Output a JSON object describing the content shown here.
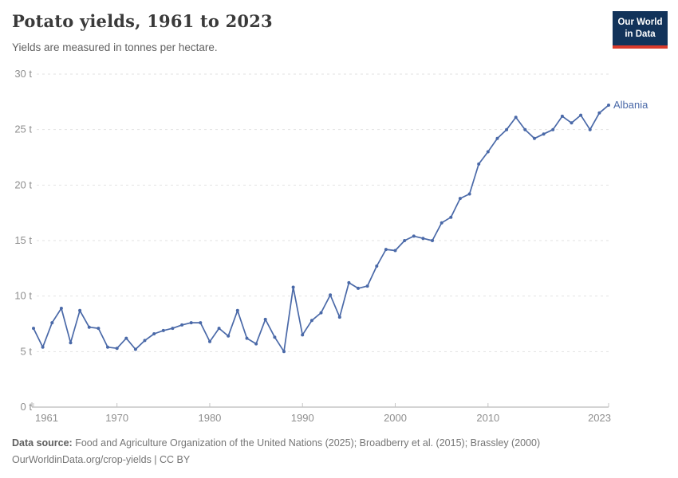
{
  "header": {
    "title": "Potato yields, 1961 to 2023",
    "subtitle": "Yields are measured in tonnes per hectare.",
    "logo": {
      "line1": "Our World",
      "line2": "in Data",
      "bg_color": "#12335a",
      "accent_color": "#d93a2b"
    }
  },
  "chart_data": {
    "type": "line",
    "title": "Potato yields, 1961 to 2023",
    "ylabel": "tonnes per hectare",
    "unit": "t",
    "xlim": [
      1961,
      2023
    ],
    "ylim": [
      0,
      30
    ],
    "x_ticks": [
      1961,
      1970,
      1980,
      1990,
      2000,
      2010,
      2023
    ],
    "y_ticks": [
      0,
      5,
      10,
      15,
      20,
      25,
      30
    ],
    "grid": "horizontal-dashed",
    "legend_position": "end-of-line-label",
    "series": [
      {
        "name": "Albania",
        "color": "#4a69a8",
        "years": [
          1961,
          1962,
          1963,
          1964,
          1965,
          1966,
          1967,
          1968,
          1969,
          1970,
          1971,
          1972,
          1973,
          1974,
          1975,
          1976,
          1977,
          1978,
          1979,
          1980,
          1981,
          1982,
          1983,
          1984,
          1985,
          1986,
          1987,
          1988,
          1989,
          1990,
          1991,
          1992,
          1993,
          1994,
          1995,
          1996,
          1997,
          1998,
          1999,
          2000,
          2001,
          2002,
          2003,
          2004,
          2005,
          2006,
          2007,
          2008,
          2009,
          2010,
          2011,
          2012,
          2013,
          2014,
          2015,
          2016,
          2017,
          2018,
          2019,
          2020,
          2021,
          2022,
          2023
        ],
        "values": [
          7.1,
          5.4,
          7.6,
          8.9,
          5.8,
          8.7,
          7.2,
          7.1,
          5.4,
          5.3,
          6.2,
          5.2,
          6.0,
          6.6,
          6.9,
          7.1,
          7.4,
          7.6,
          7.6,
          5.9,
          7.1,
          6.4,
          8.7,
          6.2,
          5.7,
          7.9,
          6.3,
          5.0,
          10.8,
          6.5,
          7.8,
          8.5,
          10.1,
          8.1,
          11.2,
          10.7,
          10.9,
          12.7,
          14.2,
          14.1,
          15.0,
          15.4,
          15.2,
          15.0,
          16.6,
          17.1,
          18.8,
          19.2,
          21.9,
          23.0,
          24.2,
          25.0,
          26.1,
          25.0,
          24.2,
          24.6,
          25.0,
          26.2,
          25.6,
          26.3,
          25.0,
          26.5,
          27.2
        ]
      }
    ],
    "colors": {
      "gridline": "#e2e2e2",
      "axis_line": "#a8a8a8",
      "tick_mark": "#c4c4c4",
      "tick_label": "#8f8f8f"
    }
  },
  "footer": {
    "source_label": "Data source:",
    "source_text": "Food and Agriculture Organization of the United Nations (2025); Broadberry et al. (2015); Brassley (2000)",
    "attribution": "OurWorldinData.org/crop-yields | CC BY"
  }
}
